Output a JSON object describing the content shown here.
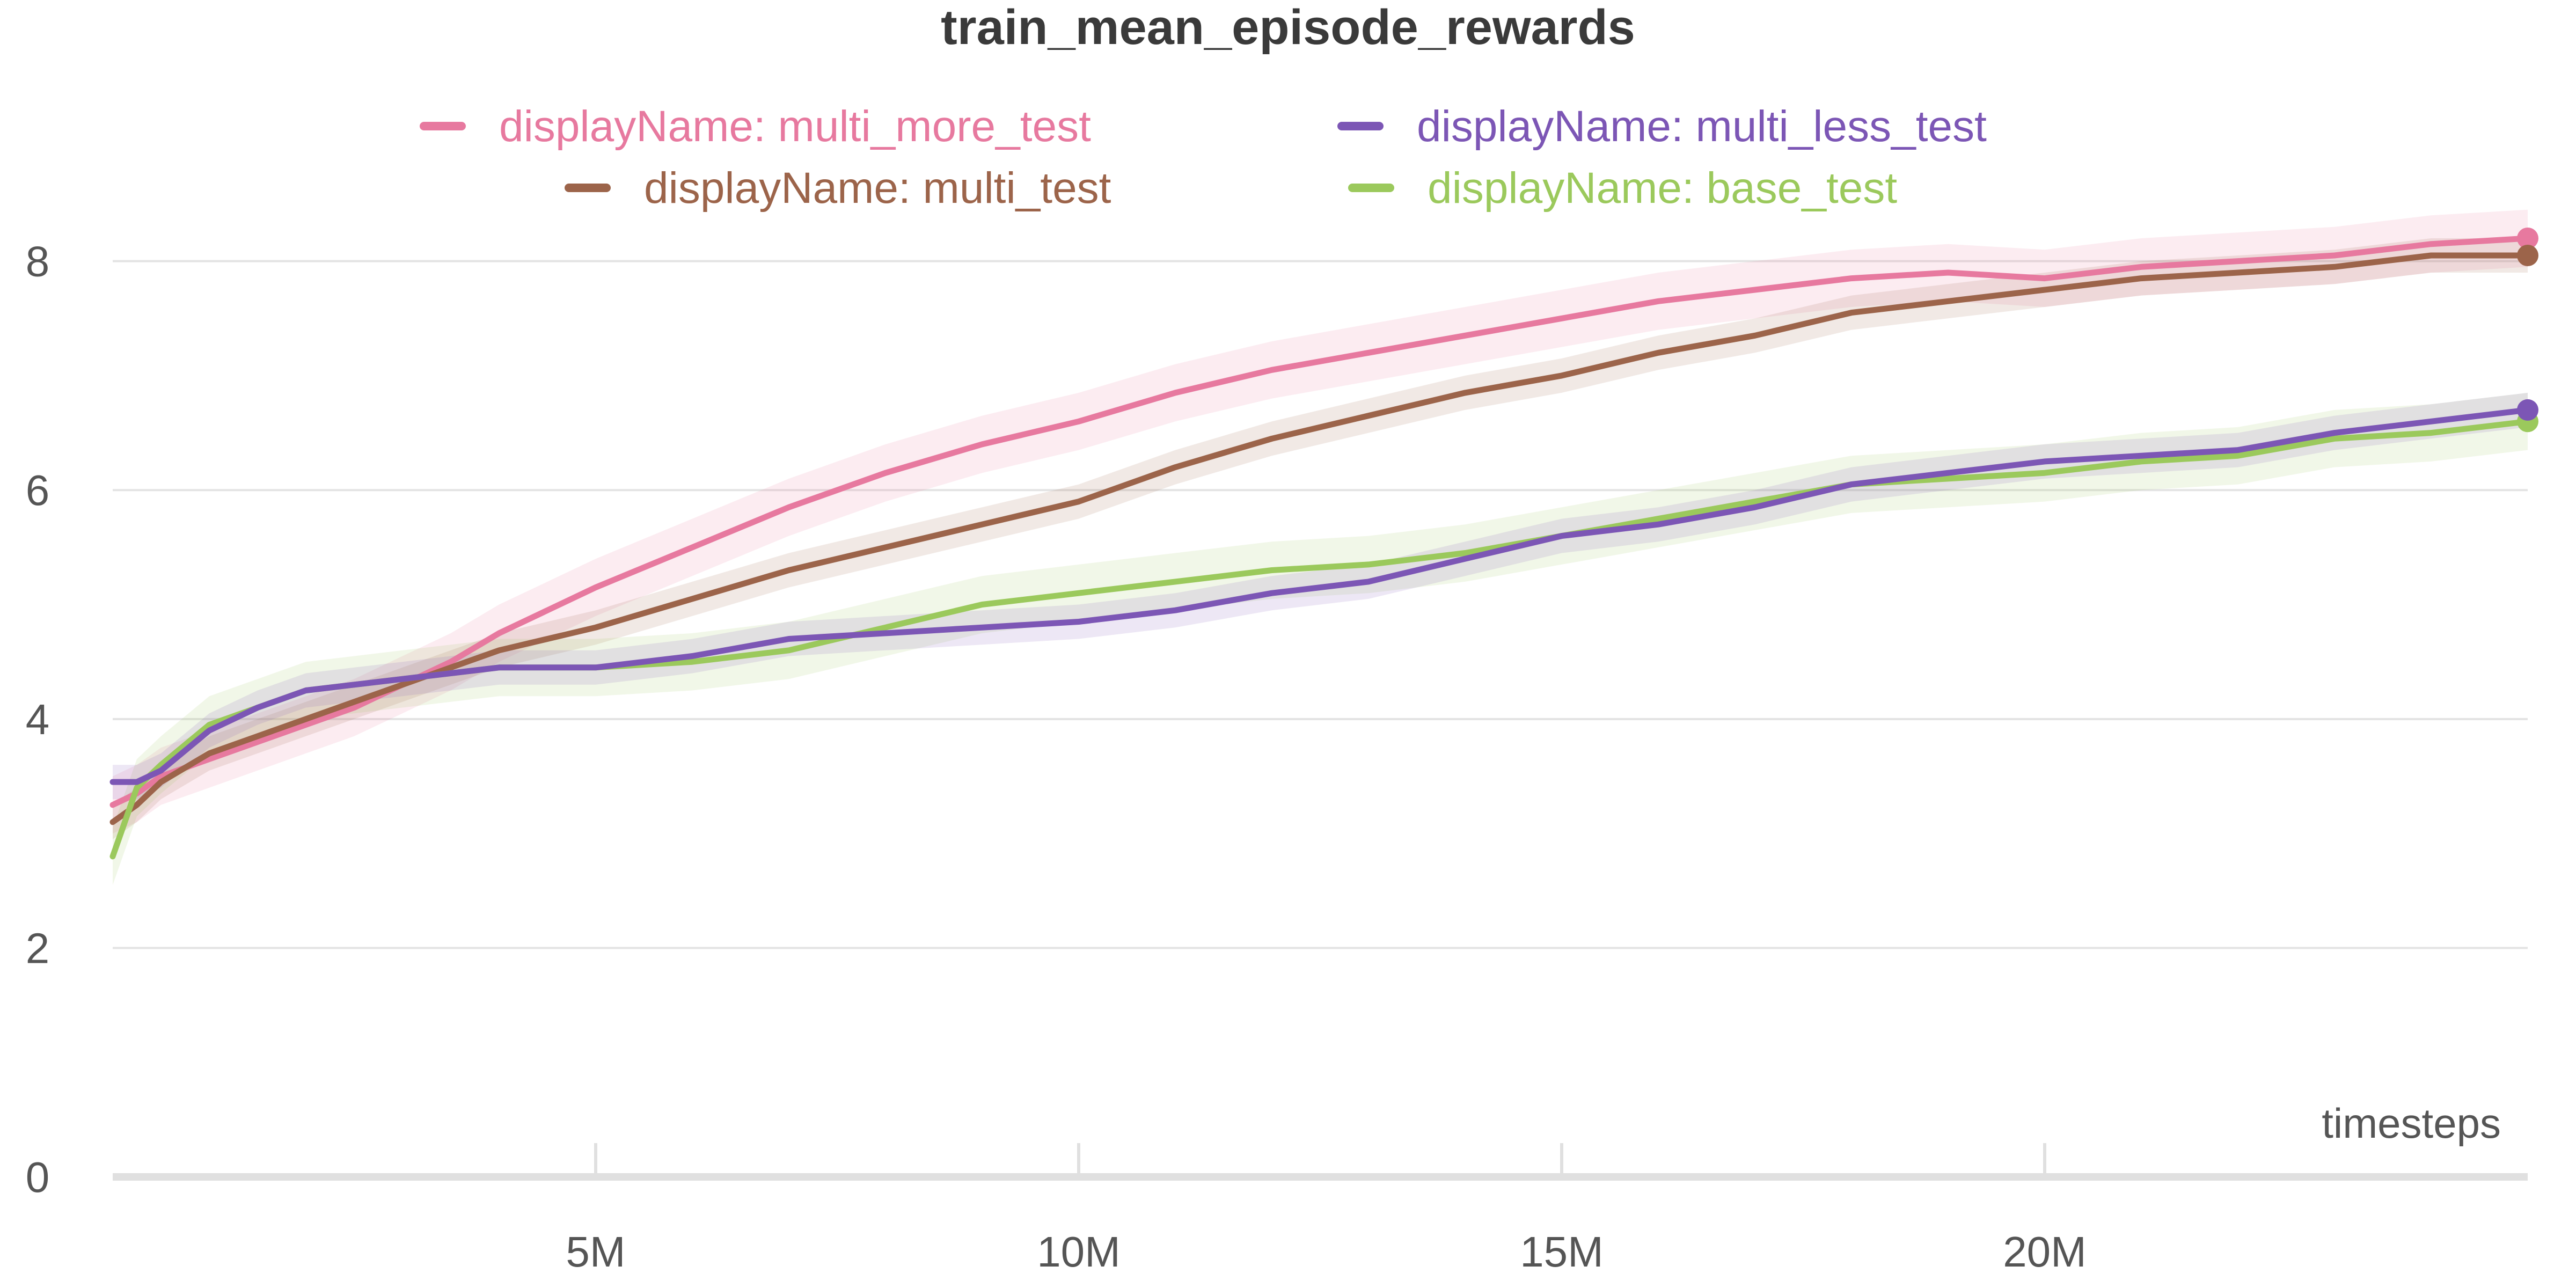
{
  "chart_data": {
    "type": "line",
    "title": "train_mean_episode_rewards",
    "xlabel": "timesteps",
    "ylabel": "",
    "xlim": [
      0,
      25000000
    ],
    "ylim": [
      0,
      8.5
    ],
    "x_ticks": [
      5000000,
      10000000,
      15000000,
      20000000
    ],
    "x_tick_labels": [
      "5M",
      "10M",
      "15M",
      "20M"
    ],
    "y_ticks": [
      0,
      2,
      4,
      6,
      8
    ],
    "y_tick_labels": [
      "0",
      "2",
      "4",
      "6",
      "8"
    ],
    "grid": true,
    "legend_position": "top-center",
    "x": [
      0,
      250000,
      500000,
      1000000,
      1500000,
      2000000,
      2500000,
      3000000,
      3500000,
      4000000,
      4500000,
      5000000,
      6000000,
      7000000,
      8000000,
      9000000,
      10000000,
      11000000,
      12000000,
      13000000,
      14000000,
      15000000,
      16000000,
      17000000,
      18000000,
      19000000,
      20000000,
      21000000,
      22000000,
      23000000,
      24000000,
      25000000
    ],
    "series": [
      {
        "name": "displayName: multi_more_test",
        "color": "#e7799f",
        "band": 0.25,
        "values": [
          3.25,
          3.35,
          3.5,
          3.65,
          3.8,
          3.95,
          4.1,
          4.3,
          4.5,
          4.75,
          4.95,
          5.15,
          5.5,
          5.85,
          6.15,
          6.4,
          6.6,
          6.85,
          7.05,
          7.2,
          7.35,
          7.5,
          7.65,
          7.75,
          7.85,
          7.9,
          7.85,
          7.95,
          8.0,
          8.05,
          8.15,
          8.2
        ]
      },
      {
        "name": "displayName: multi_less_test",
        "color": "#7c56b5",
        "band": 0.15,
        "values": [
          3.45,
          3.45,
          3.55,
          3.9,
          4.1,
          4.25,
          4.3,
          4.35,
          4.4,
          4.45,
          4.45,
          4.45,
          4.55,
          4.7,
          4.75,
          4.8,
          4.85,
          4.95,
          5.1,
          5.2,
          5.4,
          5.6,
          5.7,
          5.85,
          6.05,
          6.15,
          6.25,
          6.3,
          6.35,
          6.5,
          6.6,
          6.7
        ]
      },
      {
        "name": "displayName: multi_test",
        "color": "#9c644a",
        "band": 0.15,
        "values": [
          3.1,
          3.25,
          3.45,
          3.7,
          3.85,
          4.0,
          4.15,
          4.3,
          4.45,
          4.6,
          4.7,
          4.8,
          5.05,
          5.3,
          5.5,
          5.7,
          5.9,
          6.2,
          6.45,
          6.65,
          6.85,
          7.0,
          7.2,
          7.35,
          7.55,
          7.65,
          7.75,
          7.85,
          7.9,
          7.95,
          8.05,
          8.05
        ]
      },
      {
        "name": "displayName: base_test",
        "color": "#9bc95c",
        "band": 0.25,
        "values": [
          2.8,
          3.4,
          3.6,
          3.95,
          4.1,
          4.25,
          4.3,
          4.35,
          4.4,
          4.45,
          4.45,
          4.45,
          4.5,
          4.6,
          4.8,
          5.0,
          5.1,
          5.2,
          5.3,
          5.35,
          5.45,
          5.6,
          5.75,
          5.9,
          6.05,
          6.1,
          6.15,
          6.25,
          6.3,
          6.45,
          6.5,
          6.6
        ]
      }
    ]
  }
}
